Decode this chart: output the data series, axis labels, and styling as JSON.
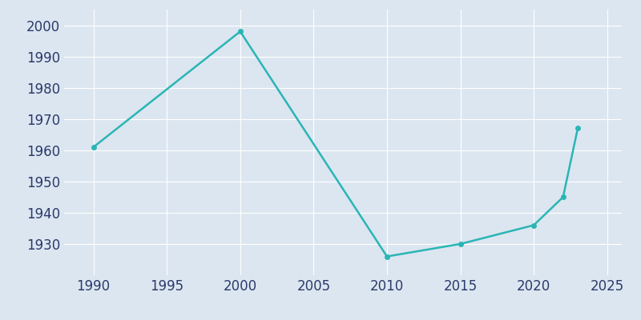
{
  "years": [
    1990,
    2000,
    2010,
    2015,
    2020,
    2022,
    2023
  ],
  "population": [
    1961,
    1998,
    1926,
    1930,
    1936,
    1945,
    1967
  ],
  "line_color": "#2ab5b5",
  "marker_style": "o",
  "marker_size": 4,
  "line_width": 1.8,
  "background_color": "#dce6f0",
  "grid_color": "#ffffff",
  "xlim": [
    1988,
    2026
  ],
  "ylim": [
    1920,
    2005
  ],
  "xticks": [
    1990,
    1995,
    2000,
    2005,
    2010,
    2015,
    2020,
    2025
  ],
  "yticks": [
    1930,
    1940,
    1950,
    1960,
    1970,
    1980,
    1990,
    2000
  ],
  "tick_label_color": "#2b3a6b",
  "tick_label_fontsize": 12,
  "spine_color": "#dce6f0",
  "figsize": [
    8.0,
    4.0
  ],
  "dpi": 100
}
